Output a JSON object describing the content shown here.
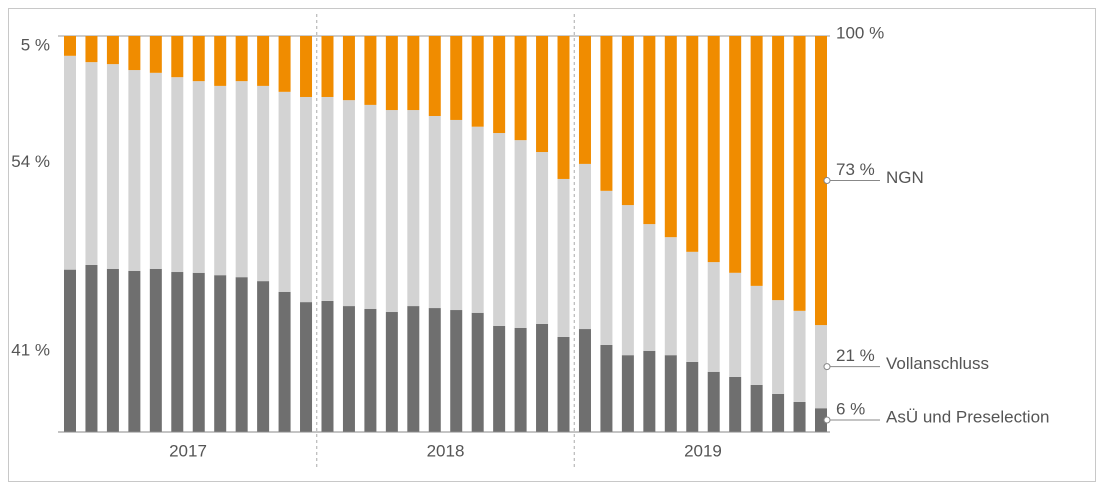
{
  "chart_data": {
    "type": "stacked_bar",
    "categories": [
      null,
      null,
      null,
      null,
      null,
      null,
      null,
      null,
      null,
      null,
      null,
      null,
      null,
      null,
      null,
      null,
      null,
      null,
      null,
      null,
      null,
      null,
      null,
      null,
      null,
      null,
      null,
      null,
      null,
      null,
      null,
      null,
      null,
      null,
      null,
      null
    ],
    "x_groups": [
      "2017",
      "2018",
      "2019"
    ],
    "ylim": [
      0,
      100
    ],
    "yticks": [
      {
        "value": 100,
        "label": "100 %"
      }
    ],
    "series": [
      {
        "name": "AsÜ und Preselection",
        "color": "#6f6f6f",
        "values": [
          41,
          42.2,
          41.2,
          40.7,
          41.2,
          40.4,
          40.2,
          39.6,
          39.1,
          38.1,
          35.4,
          32.8,
          33.1,
          31.8,
          31.1,
          30.3,
          31.8,
          31.3,
          30.8,
          30.1,
          26.8,
          26.3,
          27.3,
          24.0,
          26.0,
          22.0,
          19.4,
          20.5,
          19.4,
          17.7,
          15.2,
          13.9,
          11.9,
          9.6,
          7.6,
          6
        ],
        "value_labels": [
          "41 %",
          null,
          null,
          null,
          null,
          null,
          null,
          null,
          null,
          null,
          null,
          null,
          null,
          null,
          null,
          null,
          null,
          null,
          null,
          null,
          null,
          null,
          null,
          null,
          null,
          null,
          null,
          null,
          null,
          null,
          null,
          null,
          null,
          null,
          null,
          "6 %"
        ]
      },
      {
        "name": "Vollanschluss",
        "color": "#d3d3d3",
        "values": [
          54,
          51.2,
          51.7,
          50.7,
          49.5,
          49.2,
          48.4,
          47.8,
          49.5,
          49.3,
          50.5,
          51.8,
          51.5,
          52,
          51.5,
          51,
          49.5,
          48.5,
          48,
          47,
          48.7,
          47.4,
          43.4,
          39.9,
          41.7,
          38.9,
          37.9,
          32,
          29.8,
          27.8,
          27.7,
          26.3,
          25,
          23.7,
          23,
          21
        ],
        "value_labels": [
          "54 %",
          null,
          null,
          null,
          null,
          null,
          null,
          null,
          null,
          null,
          null,
          null,
          null,
          null,
          null,
          null,
          null,
          null,
          null,
          null,
          null,
          null,
          null,
          null,
          null,
          null,
          null,
          null,
          null,
          null,
          null,
          null,
          null,
          null,
          null,
          "21 %"
        ]
      },
      {
        "name": "NGN",
        "color": "#f08c00",
        "values": [
          5,
          6.6,
          7.1,
          8.6,
          9.3,
          10.4,
          11.4,
          12.6,
          11.4,
          12.6,
          14.1,
          15.4,
          15.4,
          16.2,
          17.4,
          18.7,
          18.7,
          20.2,
          21.2,
          22.9,
          24.5,
          26.3,
          29.3,
          36.1,
          32.3,
          39.1,
          42.7,
          47.5,
          50.8,
          54.5,
          57.1,
          59.8,
          63.1,
          66.7,
          69.4,
          73
        ],
        "value_labels": [
          "5 %",
          null,
          null,
          null,
          null,
          null,
          null,
          null,
          null,
          null,
          null,
          null,
          null,
          null,
          null,
          null,
          null,
          null,
          null,
          null,
          null,
          null,
          null,
          null,
          null,
          null,
          null,
          null,
          null,
          null,
          null,
          null,
          null,
          null,
          null,
          "73 %"
        ]
      }
    ]
  }
}
